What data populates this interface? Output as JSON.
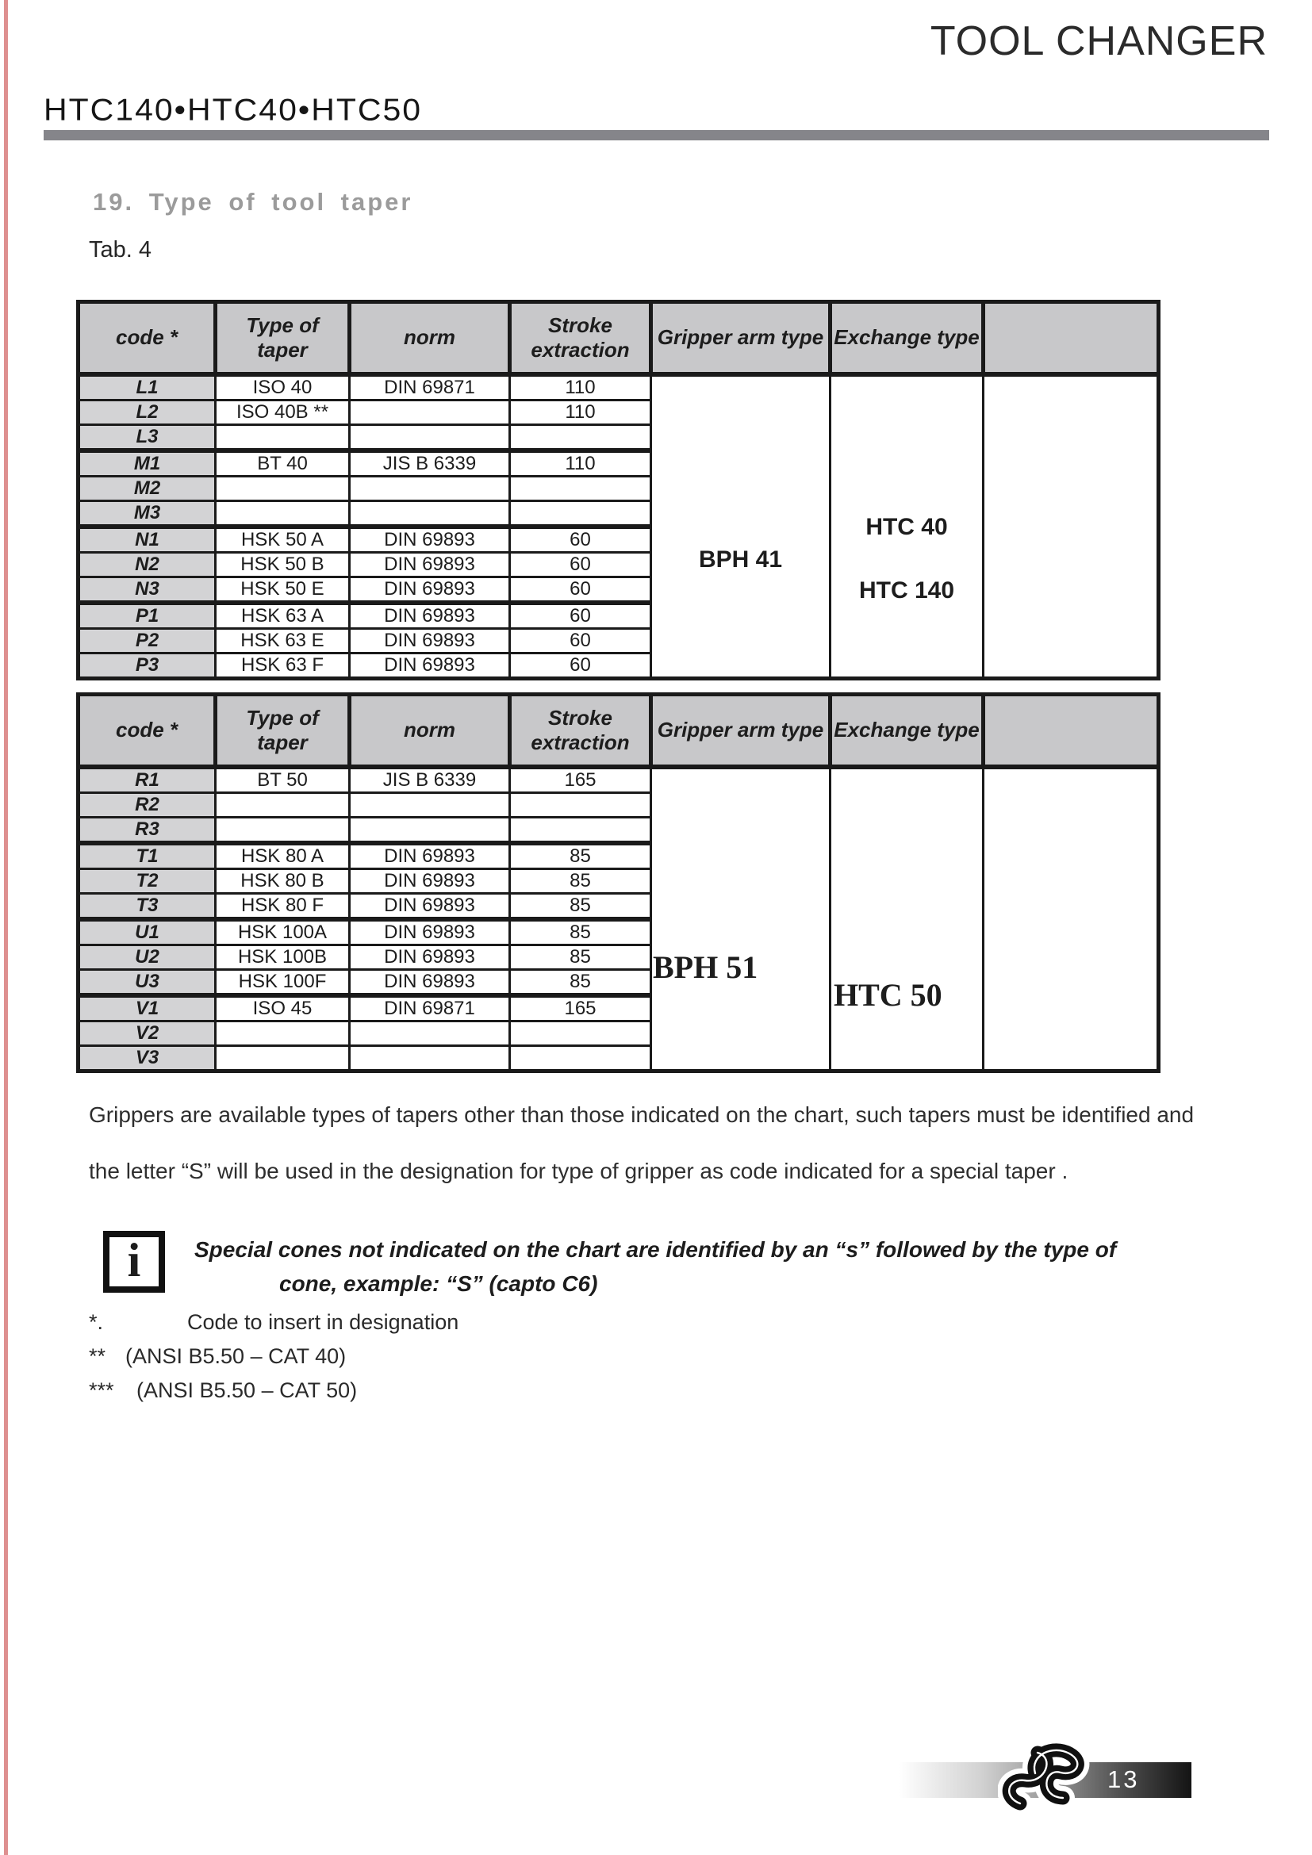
{
  "header": {
    "title": "TOOL CHANGER",
    "models": "HTC140•HTC40•HTC50"
  },
  "section": {
    "heading": "19. Type of tool taper",
    "table_label": "Tab. 4"
  },
  "table_columns": {
    "code": "code *",
    "taper": "Type of taper",
    "norm": "norm",
    "stroke": "Stroke extraction",
    "gripper": "Gripper arm type",
    "exchange": "Exchange type",
    "extra": ""
  },
  "table1": {
    "gripper_arm": "BPH 41",
    "exchange_types": [
      "HTC 40",
      "HTC 140"
    ],
    "rows": [
      {
        "code": "L1",
        "taper": "ISO 40",
        "norm": "DIN 69871",
        "stroke": "110",
        "group_start": true
      },
      {
        "code": "L2",
        "taper": "ISO 40B **",
        "norm": "",
        "stroke": "110",
        "group_start": false
      },
      {
        "code": "L3",
        "taper": "",
        "norm": "",
        "stroke": "",
        "group_start": false
      },
      {
        "code": "M1",
        "taper": "BT 40",
        "norm": "JIS B 6339",
        "stroke": "110",
        "group_start": true
      },
      {
        "code": "M2",
        "taper": "",
        "norm": "",
        "stroke": "",
        "group_start": false
      },
      {
        "code": "M3",
        "taper": "",
        "norm": "",
        "stroke": "",
        "group_start": false
      },
      {
        "code": "N1",
        "taper": "HSK 50 A",
        "norm": "DIN 69893",
        "stroke": "60",
        "group_start": true
      },
      {
        "code": "N2",
        "taper": "HSK 50 B",
        "norm": "DIN 69893",
        "stroke": "60",
        "group_start": false
      },
      {
        "code": "N3",
        "taper": "HSK 50 E",
        "norm": "DIN 69893",
        "stroke": "60",
        "group_start": false
      },
      {
        "code": "P1",
        "taper": "HSK 63 A",
        "norm": "DIN 69893",
        "stroke": "60",
        "group_start": true
      },
      {
        "code": "P2",
        "taper": "HSK 63 E",
        "norm": "DIN 69893",
        "stroke": "60",
        "group_start": false
      },
      {
        "code": "P3",
        "taper": "HSK 63 F",
        "norm": "DIN 69893",
        "stroke": "60",
        "group_start": false
      }
    ]
  },
  "table2": {
    "gripper_arm": "BPH 51",
    "exchange_types": [
      "HTC 50"
    ],
    "rows": [
      {
        "code": "R1",
        "taper": "BT 50",
        "norm": "JIS B 6339",
        "stroke": "165",
        "group_start": true
      },
      {
        "code": "R2",
        "taper": "",
        "norm": "",
        "stroke": "",
        "group_start": false
      },
      {
        "code": "R3",
        "taper": "",
        "norm": "",
        "stroke": "",
        "group_start": false
      },
      {
        "code": "T1",
        "taper": "HSK 80 A",
        "norm": "DIN 69893",
        "stroke": "85",
        "group_start": true
      },
      {
        "code": "T2",
        "taper": "HSK 80 B",
        "norm": "DIN 69893",
        "stroke": "85",
        "group_start": false
      },
      {
        "code": "T3",
        "taper": "HSK 80 F",
        "norm": "DIN 69893",
        "stroke": "85",
        "group_start": false
      },
      {
        "code": "U1",
        "taper": "HSK 100A",
        "norm": "DIN 69893",
        "stroke": "85",
        "group_start": true
      },
      {
        "code": "U2",
        "taper": "HSK 100B",
        "norm": "DIN 69893",
        "stroke": "85",
        "group_start": false
      },
      {
        "code": "U3",
        "taper": "HSK 100F",
        "norm": "DIN 69893",
        "stroke": "85",
        "group_start": false
      },
      {
        "code": "V1",
        "taper": "ISO 45",
        "norm": "DIN 69871",
        "stroke": "165",
        "group_start": true
      },
      {
        "code": "V2",
        "taper": "",
        "norm": "",
        "stroke": "",
        "group_start": false
      },
      {
        "code": "V3",
        "taper": "",
        "norm": "",
        "stroke": "",
        "group_start": false
      }
    ]
  },
  "paragraph": {
    "line1": "Grippers are available  types of tapers other than those indicated on the chart, such tapers must be identified and",
    "line2": "the letter “S” will be used in the designation for type of gripper  as code indicated for a special taper ."
  },
  "note": {
    "icon": "info-icon",
    "line1": "Special cones not indicated on the chart are identified by an “s” followed by the type of",
    "line2": "cone, example:  “S” (capto C6)"
  },
  "footnotes": [
    {
      "marker": "*.",
      "text": "Code to insert in designation"
    },
    {
      "marker": "**",
      "text": "(ANSI B5.50 – CAT 40)"
    },
    {
      "marker": "***",
      "text": "(ANSI B5.50 – CAT 50)"
    }
  ],
  "footer": {
    "page_number": "13",
    "logo": "ribbon-knot-logo"
  },
  "colors": {
    "header_rule_gray": "#85858a",
    "heading_gray": "#9b9b9b",
    "table_header_bg": "#c8c8ca",
    "code_cell_bg": "#d3d3d5",
    "table_border": "#1a1a1a",
    "footer_gradient_end": "#141414"
  }
}
